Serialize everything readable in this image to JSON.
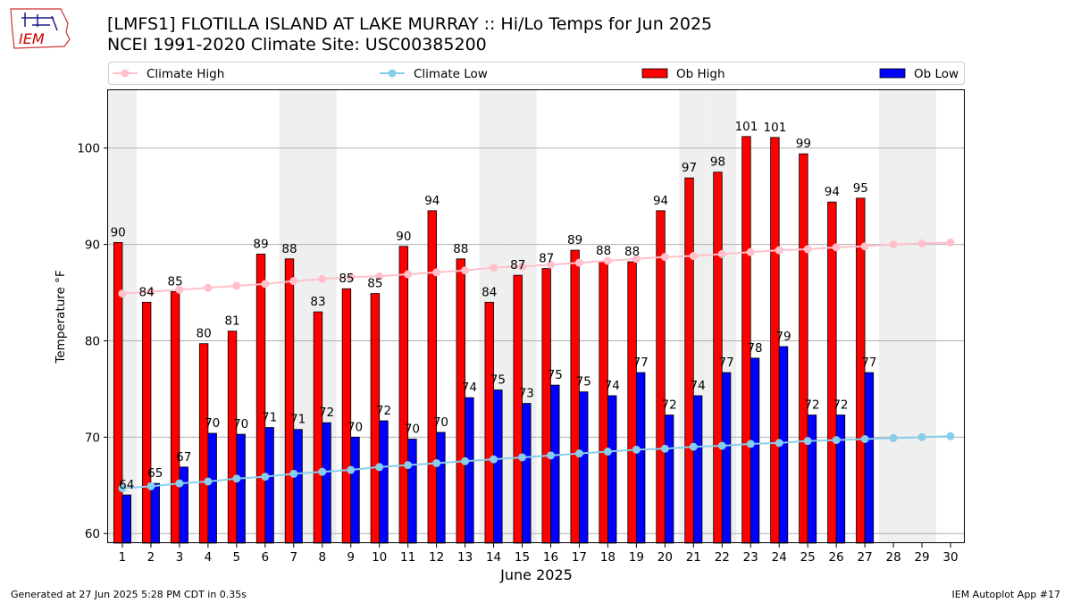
{
  "logo": {
    "text": "IEM",
    "color": "#cc0000"
  },
  "header": {
    "title_line1": "[LMFS1] FLOTILLA ISLAND AT LAKE MURRAY :: Hi/Lo Temps for Jun 2025",
    "title_line2": "NCEI 1991-2020 Climate Site: USC00385200"
  },
  "footer": {
    "generated": "Generated at 27 Jun 2025 5:28 PM CDT in 0.35s",
    "app": "IEM Autoplot App #17"
  },
  "chart_data": {
    "type": "bar",
    "xlabel": "June 2025",
    "ylabel": "Temperature °F",
    "ylim": [
      59,
      106
    ],
    "xlim": [
      0.5,
      30.5
    ],
    "yticks": [
      60,
      70,
      80,
      90,
      100
    ],
    "grid": true,
    "legend_position": "top",
    "weekend_shading_days": [
      1,
      7,
      8,
      14,
      15,
      21,
      22,
      28,
      29
    ],
    "categories": [
      1,
      2,
      3,
      4,
      5,
      6,
      7,
      8,
      9,
      10,
      11,
      12,
      13,
      14,
      15,
      16,
      17,
      18,
      19,
      20,
      21,
      22,
      23,
      24,
      25,
      26,
      27,
      28,
      29,
      30
    ],
    "series": [
      {
        "name": "Ob High",
        "kind": "bar",
        "color": "#ff0000",
        "values": [
          90.2,
          84,
          85.1,
          79.7,
          81,
          89,
          88.5,
          83,
          85.4,
          84.9,
          89.8,
          93.5,
          88.5,
          84,
          86.8,
          87.5,
          89.4,
          88.3,
          88.2,
          93.5,
          96.9,
          97.5,
          101.2,
          101.1,
          99.4,
          94.4,
          94.8,
          null,
          null,
          null
        ],
        "labels": [
          "90",
          "84",
          "85",
          "80",
          "81",
          "89",
          "88",
          "83",
          "85",
          "85",
          "90",
          "94",
          "88",
          "84",
          "87",
          "87",
          "89",
          "88",
          "88",
          "94",
          "97",
          "98",
          "101",
          "101",
          "99",
          "94",
          "95",
          "",
          "",
          ""
        ]
      },
      {
        "name": "Ob Low",
        "kind": "bar",
        "color": "#0000ff",
        "values": [
          64,
          65.2,
          66.9,
          70.4,
          70.3,
          71,
          70.8,
          71.5,
          70,
          71.7,
          69.8,
          70.5,
          74.1,
          74.9,
          73.5,
          75.4,
          74.7,
          74.3,
          76.7,
          72.3,
          74.3,
          76.7,
          78.2,
          79.4,
          72.3,
          72.3,
          76.7,
          null,
          null,
          null
        ],
        "labels": [
          "64",
          "65",
          "67",
          "70",
          "70",
          "71",
          "71",
          "72",
          "70",
          "72",
          "70",
          "70",
          "74",
          "75",
          "73",
          "75",
          "75",
          "74",
          "77",
          "72",
          "74",
          "77",
          "78",
          "79",
          "72",
          "72",
          "77",
          "",
          "",
          ""
        ]
      },
      {
        "name": "Climate High",
        "kind": "line",
        "color": "#ffc0cb",
        "values": [
          84.9,
          85.1,
          85.3,
          85.5,
          85.7,
          85.9,
          86.2,
          86.4,
          86.6,
          86.7,
          86.9,
          87.1,
          87.3,
          87.6,
          87.7,
          87.9,
          88.1,
          88.3,
          88.5,
          88.7,
          88.8,
          89,
          89.2,
          89.4,
          89.5,
          89.7,
          89.8,
          90,
          90.1,
          90.2
        ]
      },
      {
        "name": "Climate Low",
        "kind": "line",
        "color": "#87ceeb",
        "values": [
          64.7,
          64.9,
          65.2,
          65.4,
          65.7,
          65.9,
          66.2,
          66.4,
          66.6,
          66.9,
          67.1,
          67.3,
          67.5,
          67.7,
          67.9,
          68.1,
          68.3,
          68.5,
          68.7,
          68.8,
          69,
          69.1,
          69.3,
          69.4,
          69.6,
          69.7,
          69.8,
          69.9,
          70,
          70.1
        ]
      }
    ]
  }
}
